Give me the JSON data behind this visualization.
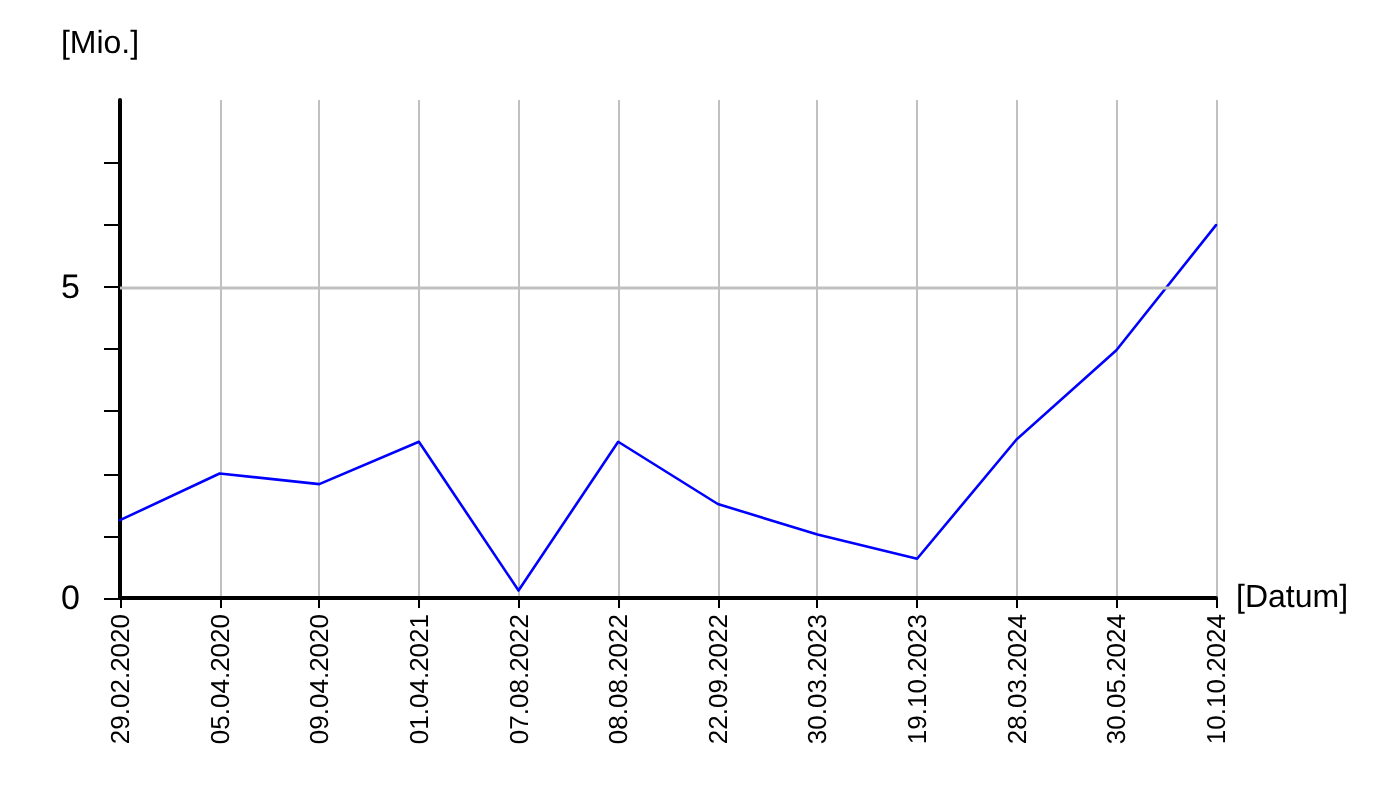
{
  "chart_data": {
    "type": "line",
    "xlabel": "[Datum]",
    "ylabel": "[Mio.]",
    "categories": [
      "29.02.2020",
      "05.04.2020",
      "09.04.2020",
      "01.04.2021",
      "07.08.2022",
      "08.08.2022",
      "22.09.2022",
      "30.03.2023",
      "19.10.2023",
      "28.03.2024",
      "30.05.2024",
      "10.10.2024"
    ],
    "series": [
      {
        "color": "#0000ff",
        "values": [
          1.25,
          2.0,
          1.83,
          2.51,
          0.12,
          2.51,
          1.51,
          1.02,
          0.63,
          2.55,
          3.98,
          5.99
        ]
      }
    ],
    "ylim": [
      0,
      8
    ],
    "yticks": [
      0,
      {
        "value": 1,
        "label": null
      },
      {
        "value": 2,
        "label": null
      },
      {
        "value": 3,
        "label": null
      },
      {
        "value": 4,
        "label": null
      },
      5,
      {
        "value": 6,
        "label": null
      },
      {
        "value": 7,
        "label": null
      }
    ],
    "ref_lines": [
      {
        "axis": "y",
        "value": 5,
        "color": "#c0c0c0"
      }
    ],
    "grid": "x",
    "marker": "none",
    "line_style": "solid"
  }
}
